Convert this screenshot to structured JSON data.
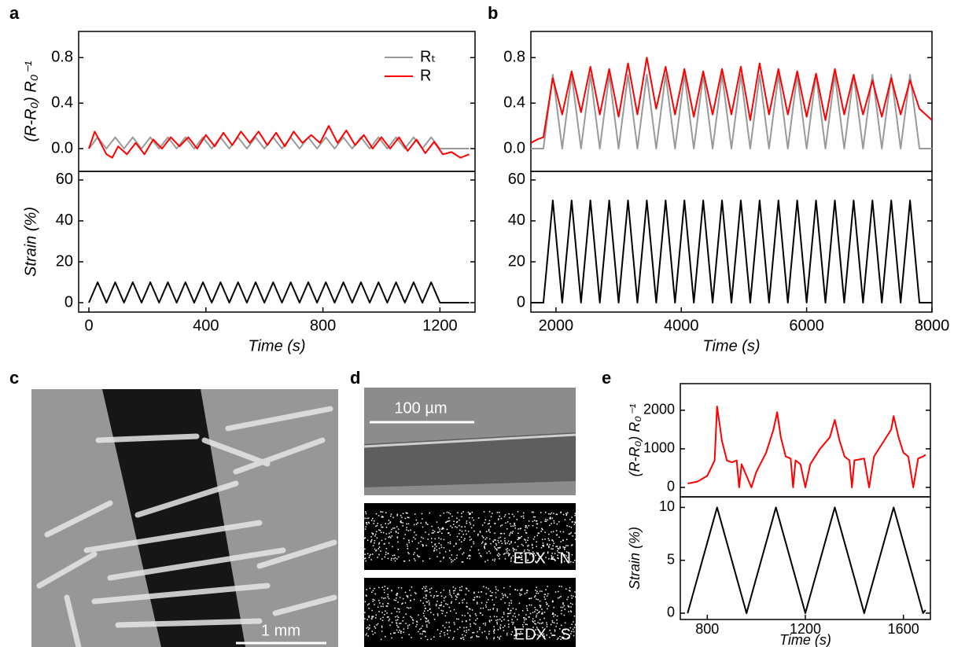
{
  "panel_labels": [
    "a",
    "b",
    "c",
    "d",
    "e"
  ],
  "images": {
    "c_scale": "1 mm",
    "d_scale": "100 µm",
    "d_edx_n": "EDX - N",
    "d_edx_s": "EDX - S"
  },
  "chart_data": [
    {
      "type": "line",
      "ylabel": "(R-R₀) R₀⁻¹",
      "xlim": [
        -35,
        1320
      ],
      "ylim": [
        -0.2,
        1.03
      ],
      "yticks": [
        {
          "value": 0,
          "label": "0.0"
        },
        0.4,
        0.8
      ],
      "legend": "upper right",
      "series": [
        {
          "name": "Rₜ",
          "color": "#999999",
          "x": [
            0,
            30,
            60,
            90,
            120,
            150,
            180,
            210,
            240,
            270,
            300,
            330,
            360,
            390,
            420,
            450,
            480,
            510,
            540,
            570,
            600,
            630,
            660,
            690,
            720,
            750,
            780,
            810,
            840,
            870,
            900,
            930,
            960,
            990,
            1020,
            1050,
            1080,
            1110,
            1140,
            1170,
            1200,
            1300
          ],
          "values": [
            0,
            0.1,
            0,
            0.1,
            0,
            0.1,
            0,
            0.1,
            0,
            0.1,
            0,
            0.1,
            0,
            0.1,
            0,
            0.1,
            0,
            0.1,
            0,
            0.1,
            0,
            0.1,
            0,
            0.1,
            0,
            0.1,
            0,
            0.1,
            0,
            0.1,
            0,
            0.1,
            0,
            0.1,
            0,
            0.1,
            0,
            0.1,
            0,
            0.1,
            0,
            0
          ]
        },
        {
          "name": "R",
          "color": "#ff0000",
          "x": [
            0,
            20,
            40,
            60,
            80,
            100,
            130,
            160,
            190,
            220,
            250,
            280,
            310,
            340,
            370,
            400,
            430,
            460,
            490,
            520,
            550,
            580,
            610,
            640,
            670,
            700,
            730,
            760,
            790,
            820,
            850,
            880,
            910,
            940,
            970,
            1000,
            1030,
            1060,
            1090,
            1120,
            1150,
            1180,
            1210,
            1240,
            1270,
            1300
          ],
          "values": [
            0,
            0.15,
            0.05,
            -0.05,
            -0.08,
            0.02,
            -0.05,
            0.05,
            -0.05,
            0.08,
            0,
            0.1,
            0.02,
            0.1,
            0,
            0.12,
            0.02,
            0.14,
            0.03,
            0.15,
            0.05,
            0.15,
            0.03,
            0.14,
            0.02,
            0.15,
            0.05,
            0.12,
            0.05,
            0.2,
            0.05,
            0.16,
            0.03,
            0.12,
            0,
            0.1,
            0,
            0.1,
            -0.02,
            0.08,
            -0.04,
            0.06,
            -0.05,
            -0.03,
            -0.08,
            -0.05
          ]
        }
      ]
    },
    {
      "type": "line",
      "ylabel": "Strain (%)",
      "xlabel": "Time (s)",
      "xlim": [
        -35,
        1320
      ],
      "xticks": [
        0,
        400,
        800,
        1200
      ],
      "ylim": [
        -4.6,
        64.2
      ],
      "yticks": [
        0,
        20,
        40,
        60
      ],
      "series": [
        {
          "color": "#000000",
          "x": [
            0,
            30,
            60,
            90,
            120,
            150,
            180,
            210,
            240,
            270,
            300,
            330,
            360,
            390,
            420,
            450,
            480,
            510,
            540,
            570,
            600,
            630,
            660,
            690,
            720,
            750,
            780,
            810,
            840,
            870,
            900,
            930,
            960,
            990,
            1020,
            1050,
            1080,
            1110,
            1140,
            1170,
            1200,
            1300
          ],
          "values": [
            0,
            10,
            0,
            10,
            0,
            10,
            0,
            10,
            0,
            10,
            0,
            10,
            0,
            10,
            0,
            10,
            0,
            10,
            0,
            10,
            0,
            10,
            0,
            10,
            0,
            10,
            0,
            10,
            0,
            10,
            0,
            10,
            0,
            10,
            0,
            10,
            0,
            10,
            0,
            10,
            0,
            0
          ]
        }
      ]
    },
    {
      "type": "line",
      "xlim": [
        1600,
        8000
      ],
      "ylim": [
        -0.2,
        1.03
      ],
      "yticks": [
        {
          "value": 0,
          "label": "0.0"
        },
        0.4,
        0.8
      ],
      "series": [
        {
          "color": "#999999",
          "x": [
            1600,
            1800,
            1950,
            2100,
            2250,
            2400,
            2550,
            2700,
            2850,
            3000,
            3150,
            3300,
            3450,
            3600,
            3750,
            3900,
            4050,
            4200,
            4350,
            4500,
            4650,
            4800,
            4950,
            5100,
            5250,
            5400,
            5550,
            5700,
            5850,
            6000,
            6150,
            6300,
            6450,
            6600,
            6750,
            6900,
            7050,
            7200,
            7350,
            7500,
            7650,
            7800,
            8000
          ],
          "values": [
            0,
            0,
            0.65,
            0,
            0.65,
            0,
            0.65,
            0,
            0.65,
            0,
            0.65,
            0,
            0.65,
            0,
            0.65,
            0,
            0.65,
            0,
            0.65,
            0,
            0.65,
            0,
            0.65,
            0,
            0.65,
            0,
            0.65,
            0,
            0.65,
            0,
            0.65,
            0,
            0.65,
            0,
            0.65,
            0,
            0.65,
            0,
            0.65,
            0,
            0.65,
            0,
            0
          ]
        },
        {
          "color": "#ff0000",
          "x": [
            1600,
            1700,
            1800,
            1950,
            2100,
            2250,
            2400,
            2550,
            2700,
            2850,
            3000,
            3150,
            3300,
            3450,
            3600,
            3750,
            3900,
            4050,
            4200,
            4350,
            4500,
            4650,
            4800,
            4950,
            5100,
            5250,
            5400,
            5550,
            5700,
            5850,
            6000,
            6150,
            6300,
            6450,
            6600,
            6750,
            6900,
            7050,
            7200,
            7350,
            7500,
            7650,
            7800,
            7900,
            8000
          ],
          "values": [
            0.05,
            0.08,
            0.1,
            0.62,
            0.3,
            0.68,
            0.32,
            0.72,
            0.3,
            0.7,
            0.28,
            0.75,
            0.3,
            0.8,
            0.35,
            0.72,
            0.3,
            0.7,
            0.28,
            0.68,
            0.3,
            0.7,
            0.3,
            0.72,
            0.25,
            0.75,
            0.3,
            0.7,
            0.3,
            0.68,
            0.28,
            0.66,
            0.25,
            0.7,
            0.3,
            0.65,
            0.3,
            0.6,
            0.28,
            0.62,
            0.3,
            0.6,
            0.35,
            0.3,
            0.25
          ]
        }
      ]
    },
    {
      "type": "line",
      "xlabel": "Time (s)",
      "xlim": [
        1600,
        8000
      ],
      "xticks": [
        2000,
        4000,
        6000,
        8000
      ],
      "ylim": [
        -4.6,
        64.2
      ],
      "yticks": [
        0,
        20,
        40,
        60
      ],
      "series": [
        {
          "color": "#000000",
          "x": [
            1600,
            1800,
            1950,
            2100,
            2250,
            2400,
            2550,
            2700,
            2850,
            3000,
            3150,
            3300,
            3450,
            3600,
            3750,
            3900,
            4050,
            4200,
            4350,
            4500,
            4650,
            4800,
            4950,
            5100,
            5250,
            5400,
            5550,
            5700,
            5850,
            6000,
            6150,
            6300,
            6450,
            6600,
            6750,
            6900,
            7050,
            7200,
            7350,
            7500,
            7650,
            7800,
            8000
          ],
          "values": [
            0,
            0,
            50,
            0,
            50,
            0,
            50,
            0,
            50,
            0,
            50,
            0,
            50,
            0,
            50,
            0,
            50,
            0,
            50,
            0,
            50,
            0,
            50,
            0,
            50,
            0,
            50,
            0,
            50,
            0,
            50,
            0,
            50,
            0,
            50,
            0,
            50,
            0,
            50,
            0,
            50,
            0,
            0
          ]
        }
      ]
    },
    {
      "type": "line",
      "ylabel": "(R-R₀) R₀⁻¹",
      "xlim": [
        690,
        1710
      ],
      "ylim": [
        -245,
        2690
      ],
      "yticks": [
        0,
        1000,
        2000
      ],
      "series": [
        {
          "color": "#ff0000",
          "x": [
            720,
            760,
            800,
            830,
            840,
            860,
            880,
            900,
            920,
            930,
            940,
            960,
            980,
            1000,
            1040,
            1070,
            1085,
            1100,
            1120,
            1140,
            1150,
            1160,
            1180,
            1200,
            1220,
            1260,
            1300,
            1320,
            1340,
            1360,
            1380,
            1390,
            1400,
            1440,
            1460,
            1480,
            1520,
            1550,
            1560,
            1580,
            1600,
            1620,
            1640,
            1660,
            1680,
            1690
          ],
          "values": [
            100,
            150,
            300,
            700,
            2100,
            1200,
            700,
            650,
            700,
            0,
            600,
            300,
            0,
            400,
            900,
            1500,
            1950,
            1300,
            800,
            750,
            0,
            700,
            600,
            0,
            600,
            1000,
            1300,
            1750,
            1200,
            800,
            700,
            0,
            700,
            750,
            0,
            800,
            1200,
            1500,
            1850,
            1300,
            900,
            800,
            0,
            750,
            800,
            850
          ]
        }
      ]
    },
    {
      "type": "line",
      "ylabel": "Strain (%)",
      "xlabel": "Time (s)",
      "xlim": [
        690,
        1710
      ],
      "xticks": [
        800,
        1200,
        1600
      ],
      "ylim": [
        -0.6,
        11
      ],
      "yticks": [
        0,
        5,
        10
      ],
      "series": [
        {
          "color": "#000000",
          "x": [
            720,
            840,
            960,
            1080,
            1200,
            1320,
            1440,
            1560,
            1680,
            1690
          ],
          "values": [
            0,
            10,
            0,
            10,
            0,
            10,
            0,
            10,
            0,
            0.3
          ]
        }
      ]
    }
  ]
}
